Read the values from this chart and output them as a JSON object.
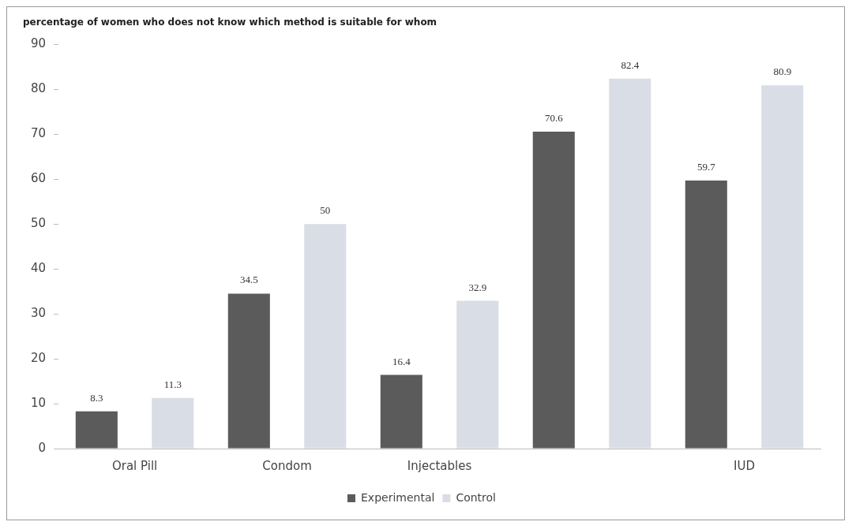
{
  "chart_data": {
    "type": "bar",
    "title": "percentage of women who does not know which method is suitable for whom",
    "categories": [
      "Oral Pill",
      "Condom",
      "Injectables",
      null,
      "IUD"
    ],
    "series": [
      {
        "name": "Experimental",
        "color": "#5b5b5b",
        "values": [
          8.3,
          34.5,
          16.4,
          70.6,
          59.7
        ]
      },
      {
        "name": "Control",
        "color": "#d9dde5",
        "values": [
          11.3,
          50,
          32.9,
          82.4,
          80.9
        ]
      }
    ],
    "ylim": [
      0,
      90
    ],
    "yticks": [
      0,
      10,
      20,
      30,
      40,
      50,
      60,
      70,
      80,
      90
    ],
    "grid": false,
    "legend": "bottom",
    "data_labels": true
  }
}
